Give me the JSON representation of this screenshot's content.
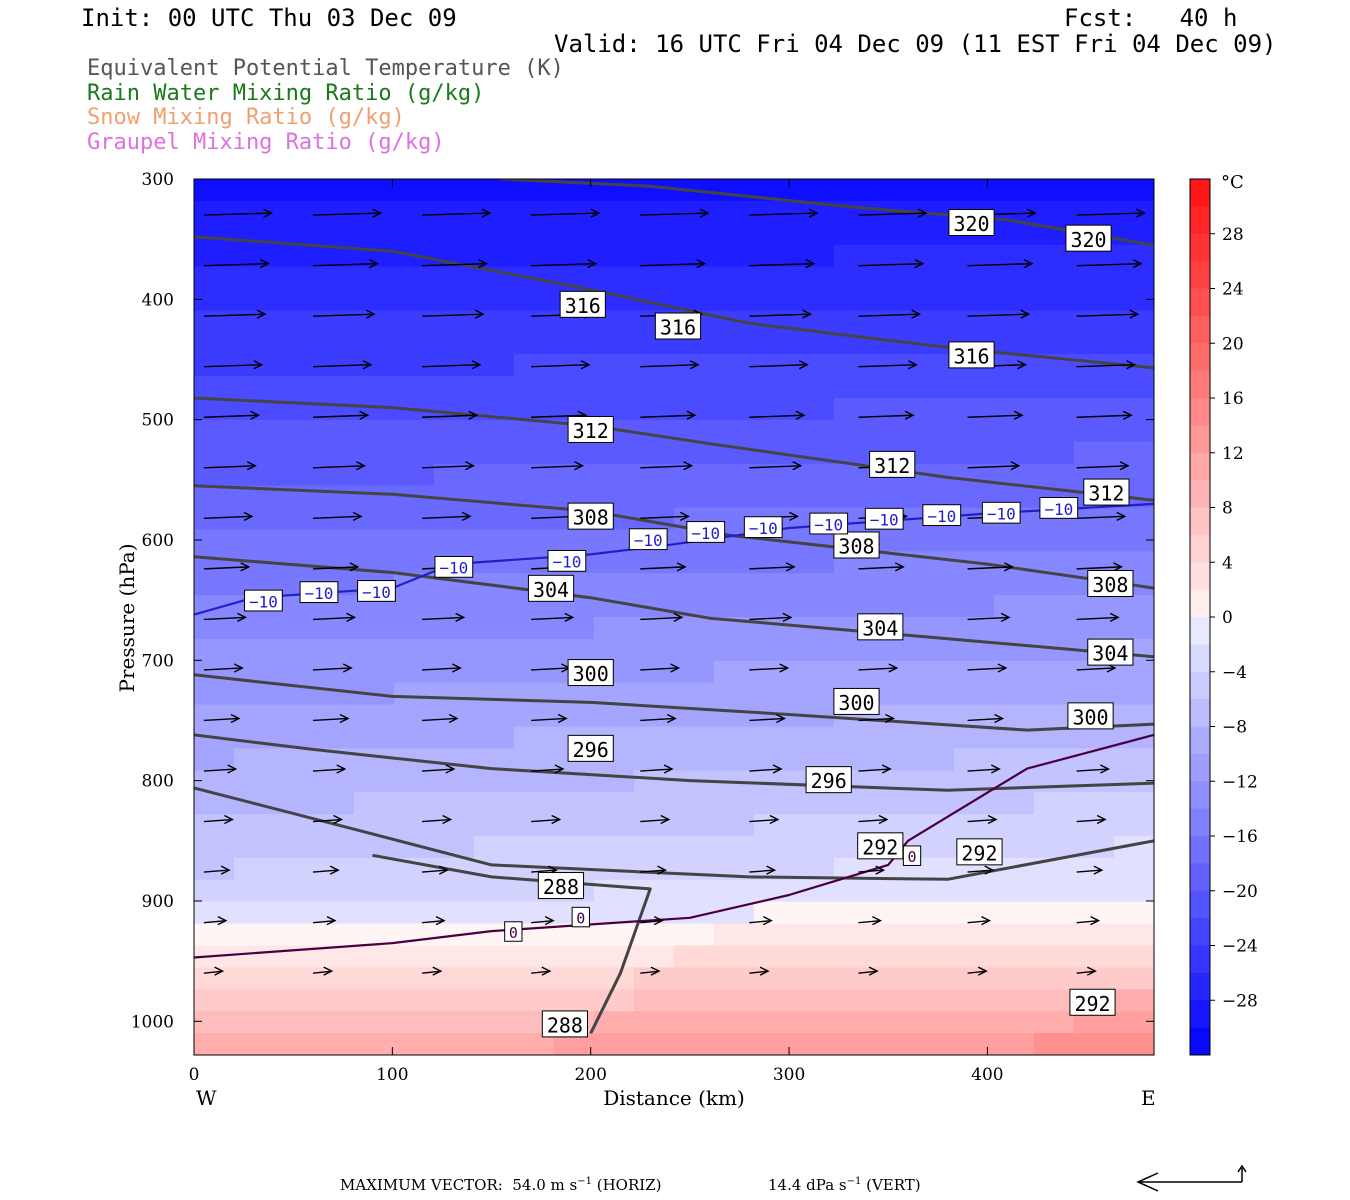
{
  "header": {
    "init": "Init: 00 UTC Thu 03 Dec 09",
    "fcst": "Fcst:   40 h",
    "valid": "Valid: 16 UTC Fri 04 Dec 09 (11 EST Fri 04 Dec 09)"
  },
  "legend": [
    {
      "label": "Equivalent Potential Temperature (K)",
      "color": "#555555"
    },
    {
      "label": "Rain Water Mixing Ratio (g/kg)",
      "color": "#1a7a1a"
    },
    {
      "label": "Snow Mixing Ratio (g/kg)",
      "color": "#f0a070"
    },
    {
      "label": "Graupel Mixing Ratio (g/kg)",
      "color": "#e070e0"
    }
  ],
  "chart_data": {
    "type": "cross-section",
    "xlabel": "Distance (km)",
    "ylabel": "Pressure (hPa)",
    "xlim": [
      0,
      484
    ],
    "ylim": [
      1028,
      300
    ],
    "x_ticks": [
      0,
      100,
      200,
      300,
      400
    ],
    "y_ticks": [
      300,
      400,
      500,
      600,
      700,
      800,
      900,
      1000
    ],
    "x_end_labels": {
      "left": "W",
      "right": "E"
    },
    "colorbar": {
      "unit": "°C",
      "ticks": [
        "28",
        "24",
        "20",
        "16",
        "12",
        "8",
        "4",
        "0",
        "−4",
        "−8",
        "−12",
        "−16",
        "−20",
        "−24",
        "−28"
      ],
      "range": [
        -32,
        32
      ],
      "step": 2
    },
    "theta_e_contours": [
      {
        "value": 320,
        "color": "#444444",
        "points": [
          [
            155,
            300
          ],
          [
            230,
            306
          ],
          [
            330,
            323
          ],
          [
            410,
            334
          ],
          [
            484,
            355
          ]
        ],
        "labels": [
          {
            "text": "320",
            "x": 392,
            "p": 337
          },
          {
            "text": "320",
            "x": 451,
            "p": 350
          }
        ]
      },
      {
        "value": 316,
        "color": "#444444",
        "points": [
          [
            0,
            348
          ],
          [
            100,
            360
          ],
          [
            200,
            392
          ],
          [
            280,
            420
          ],
          [
            380,
            440
          ],
          [
            484,
            457
          ]
        ],
        "labels": [
          {
            "text": "316",
            "x": 196,
            "p": 405
          },
          {
            "text": "316",
            "x": 244,
            "p": 423
          },
          {
            "text": "316",
            "x": 392,
            "p": 447
          }
        ]
      },
      {
        "value": 312,
        "color": "#444444",
        "points": [
          [
            0,
            482
          ],
          [
            100,
            490
          ],
          [
            200,
            505
          ],
          [
            260,
            520
          ],
          [
            380,
            548
          ],
          [
            484,
            567
          ]
        ],
        "labels": [
          {
            "text": "312",
            "x": 200,
            "p": 509
          },
          {
            "text": "312",
            "x": 352,
            "p": 538
          },
          {
            "text": "312",
            "x": 460,
            "p": 561
          }
        ]
      },
      {
        "value": 308,
        "color": "#444444",
        "points": [
          [
            0,
            555
          ],
          [
            100,
            562
          ],
          [
            200,
            576
          ],
          [
            270,
            596
          ],
          [
            400,
            620
          ],
          [
            484,
            640
          ]
        ],
        "labels": [
          {
            "text": "308",
            "x": 200,
            "p": 581
          },
          {
            "text": "308",
            "x": 334,
            "p": 605
          },
          {
            "text": "308",
            "x": 462,
            "p": 637
          }
        ]
      },
      {
        "value": 304,
        "color": "#444444",
        "points": [
          [
            0,
            614
          ],
          [
            100,
            627
          ],
          [
            200,
            648
          ],
          [
            260,
            665
          ],
          [
            380,
            682
          ],
          [
            484,
            697
          ]
        ],
        "labels": [
          {
            "text": "304",
            "x": 180,
            "p": 641
          },
          {
            "text": "304",
            "x": 346,
            "p": 673
          },
          {
            "text": "304",
            "x": 462,
            "p": 694
          }
        ]
      },
      {
        "value": 300,
        "color": "#444444",
        "points": [
          [
            0,
            712
          ],
          [
            100,
            730
          ],
          [
            200,
            735
          ],
          [
            300,
            745
          ],
          [
            420,
            758
          ],
          [
            484,
            753
          ]
        ],
        "labels": [
          {
            "text": "300",
            "x": 200,
            "p": 711
          },
          {
            "text": "300",
            "x": 334,
            "p": 735
          },
          {
            "text": "300",
            "x": 452,
            "p": 747
          }
        ]
      },
      {
        "value": 296,
        "color": "#444444",
        "points": [
          [
            0,
            762
          ],
          [
            60,
            774
          ],
          [
            150,
            790
          ],
          [
            250,
            800
          ],
          [
            380,
            808
          ],
          [
            484,
            802
          ]
        ],
        "labels": [
          {
            "text": "296",
            "x": 200,
            "p": 774
          },
          {
            "text": "296",
            "x": 320,
            "p": 800
          }
        ]
      },
      {
        "value": 292,
        "color": "#444444",
        "points": [
          [
            0,
            806
          ],
          [
            80,
            840
          ],
          [
            150,
            870
          ],
          [
            280,
            880
          ],
          [
            380,
            882
          ],
          [
            484,
            850
          ]
        ],
        "labels": [
          {
            "text": "292",
            "x": 346,
            "p": 855
          },
          {
            "text": "292",
            "x": 396,
            "p": 860
          },
          {
            "text": "292",
            "x": 453,
            "p": 985
          }
        ]
      },
      {
        "value": 288,
        "color": "#444444",
        "points": [
          [
            90,
            862
          ],
          [
            150,
            880
          ],
          [
            230,
            890
          ],
          [
            215,
            960
          ],
          [
            200,
            1010
          ]
        ],
        "labels": [
          {
            "text": "288",
            "x": 185,
            "p": 888
          },
          {
            "text": "288",
            "x": 187,
            "p": 1003
          }
        ]
      }
    ],
    "temperature_contours": [
      {
        "value": -10,
        "color": "#2020c8",
        "points": [
          [
            0,
            662
          ],
          [
            30,
            648
          ],
          [
            100,
            640
          ],
          [
            130,
            620
          ],
          [
            200,
            612
          ],
          [
            240,
            604
          ],
          [
            300,
            590
          ],
          [
            400,
            578
          ],
          [
            484,
            570
          ]
        ],
        "labels": [
          {
            "text": "−10",
            "x": 35,
            "p": 651
          },
          {
            "text": "−10",
            "x": 63,
            "p": 644
          },
          {
            "text": "−10",
            "x": 92,
            "p": 643
          },
          {
            "text": "−10",
            "x": 131,
            "p": 623
          },
          {
            "text": "−10",
            "x": 188,
            "p": 618
          },
          {
            "text": "−10",
            "x": 229,
            "p": 600
          },
          {
            "text": "−10",
            "x": 258,
            "p": 594
          },
          {
            "text": "−10",
            "x": 287,
            "p": 590
          },
          {
            "text": "−10",
            "x": 320,
            "p": 587
          },
          {
            "text": "−10",
            "x": 348,
            "p": 583
          },
          {
            "text": "−10",
            "x": 377,
            "p": 580
          },
          {
            "text": "−10",
            "x": 407,
            "p": 578
          },
          {
            "text": "−10",
            "x": 436,
            "p": 574
          }
        ]
      },
      {
        "value": 0,
        "color": "#4a0040",
        "points": [
          [
            0,
            947
          ],
          [
            100,
            935
          ],
          [
            150,
            925
          ],
          [
            250,
            914
          ],
          [
            300,
            895
          ],
          [
            350,
            870
          ],
          [
            360,
            850
          ],
          [
            420,
            790
          ],
          [
            484,
            762
          ]
        ],
        "labels": [
          {
            "text": "0",
            "x": 161,
            "p": 926
          },
          {
            "text": "0",
            "x": 195,
            "p": 914
          },
          {
            "text": "0",
            "x": 362,
            "p": 863
          }
        ]
      }
    ],
    "max_vector": {
      "text": "MAXIMUM VECTOR:  54.0 m s",
      "horiz_unit_exp": "−1",
      "horiz_suffix": " (HORIZ)",
      "vert": "14.4 dPa s",
      "vert_unit_exp": "−1",
      "vert_suffix": " (VERT)"
    }
  }
}
